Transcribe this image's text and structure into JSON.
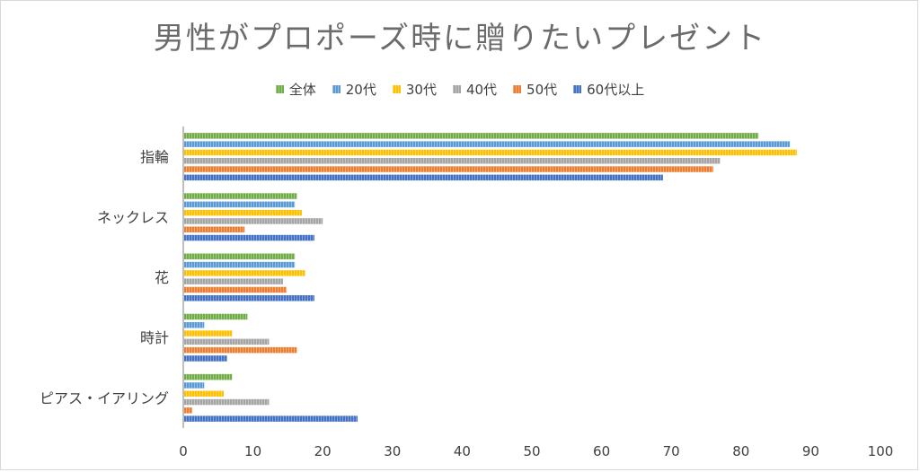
{
  "chart_data": {
    "type": "bar",
    "orientation": "horizontal",
    "title": "男性がプロポーズ時に贈りたいプレゼント",
    "categories": [
      "指輪",
      "ネックレス",
      "花",
      "時計",
      "ピアス・イアリング"
    ],
    "series": [
      {
        "name": "全体",
        "color": "#70ad47",
        "values": [
          82.5,
          16.3,
          16.0,
          9.2,
          7.0
        ]
      },
      {
        "name": "20代",
        "color": "#5b9bd5",
        "values": [
          87.0,
          16.0,
          16.0,
          3.0,
          3.0
        ]
      },
      {
        "name": "30代",
        "color": "#ffc000",
        "values": [
          88.0,
          17.0,
          17.5,
          7.0,
          5.8
        ]
      },
      {
        "name": "40代",
        "color": "#a5a5a5",
        "values": [
          77.0,
          20.0,
          14.3,
          12.3,
          12.3
        ]
      },
      {
        "name": "50代",
        "color": "#ed7d31",
        "values": [
          76.0,
          8.8,
          14.8,
          16.3,
          1.3
        ]
      },
      {
        "name": "60代以上",
        "color": "#4472c4",
        "values": [
          68.8,
          18.8,
          18.8,
          6.3,
          25.0
        ]
      }
    ],
    "xlim": [
      0,
      100
    ],
    "xticks": [
      "0",
      "10",
      "20",
      "30",
      "40",
      "50",
      "60",
      "70",
      "80",
      "90",
      "100"
    ],
    "grid": false,
    "legend_position": "top"
  }
}
